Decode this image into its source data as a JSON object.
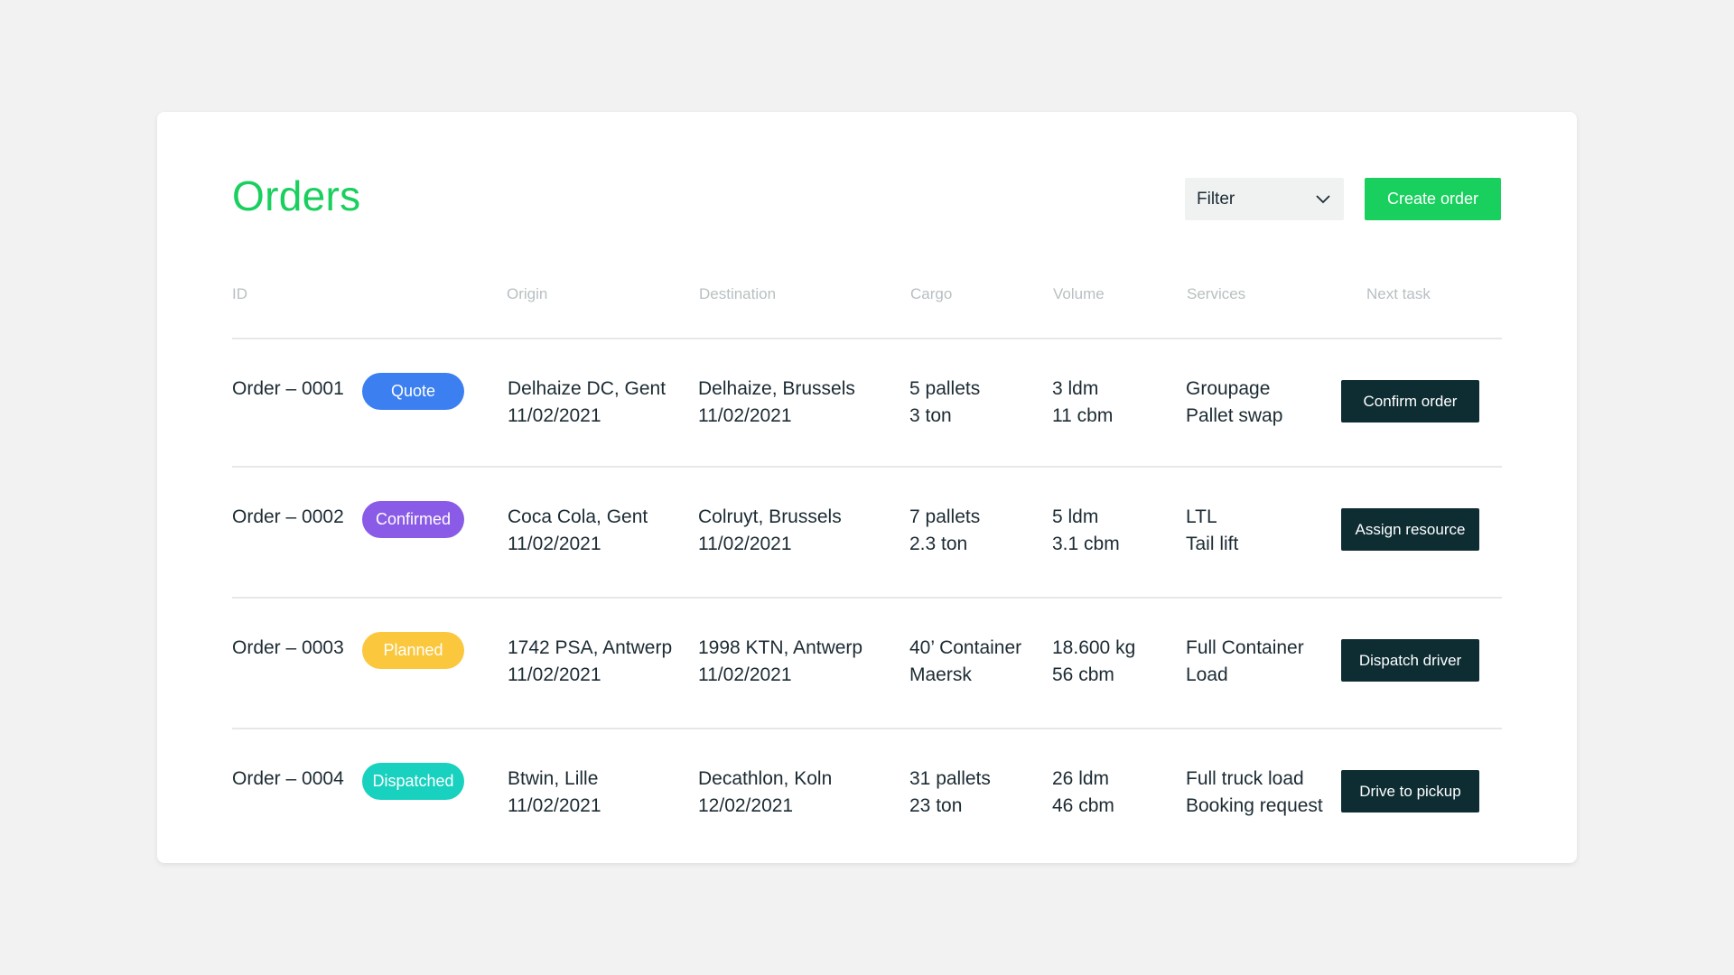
{
  "page": {
    "title": "Orders",
    "filter": {
      "label": "Filter",
      "icon": "chevron-down-icon"
    },
    "create_button": "Create order"
  },
  "colors": {
    "accent": "#19cf5e",
    "dark_button": "#0d2d33",
    "quote": "#3b7ff0",
    "confirmed": "#8a5be6",
    "planned": "#fac73d",
    "dispatched": "#19d1bf"
  },
  "table": {
    "columns": [
      "ID",
      "Origin",
      "Destination",
      "Cargo",
      "Volume",
      "Services",
      "Next task"
    ],
    "rows": [
      {
        "id": "Order – 0001",
        "status": "Quote",
        "origin": "Delhaize DC, Gent",
        "origin_date": "11/02/2021",
        "destination": "Delhaize, Brussels",
        "destination_date": "11/02/2021",
        "cargo1": "5 pallets",
        "cargo2": "3 ton",
        "volume1": "3 ldm",
        "volume2": "11 cbm",
        "service1": "Groupage",
        "service2": "Pallet swap",
        "next_task": "Confirm order"
      },
      {
        "id": "Order – 0002",
        "status": "Confirmed",
        "origin": "Coca Cola, Gent",
        "origin_date": "11/02/2021",
        "destination": "Colruyt, Brussels",
        "destination_date": "11/02/2021",
        "cargo1": "7 pallets",
        "cargo2": "2.3 ton",
        "volume1": "5 ldm",
        "volume2": "3.1 cbm",
        "service1": "LTL",
        "service2": "Tail lift",
        "next_task": "Assign resource"
      },
      {
        "id": "Order – 0003",
        "status": "Planned",
        "origin": "1742 PSA, Antwerp",
        "origin_date": "11/02/2021",
        "destination": "1998 KTN, Antwerp",
        "destination_date": "11/02/2021",
        "cargo1": "40’ Container",
        "cargo2": "Maersk",
        "volume1": "18.600 kg",
        "volume2": "56 cbm",
        "service1": "Full Container",
        "service2": "Load",
        "next_task": "Dispatch driver"
      },
      {
        "id": "Order – 0004",
        "status": "Dispatched",
        "origin": "Btwin, Lille",
        "origin_date": "11/02/2021",
        "destination": "Decathlon, Koln",
        "destination_date": "12/02/2021",
        "cargo1": "31 pallets",
        "cargo2": "23 ton",
        "volume1": "26 ldm",
        "volume2": "46 cbm",
        "service1": "Full truck load",
        "service2": "Booking request",
        "next_task": "Drive to pickup"
      }
    ]
  }
}
